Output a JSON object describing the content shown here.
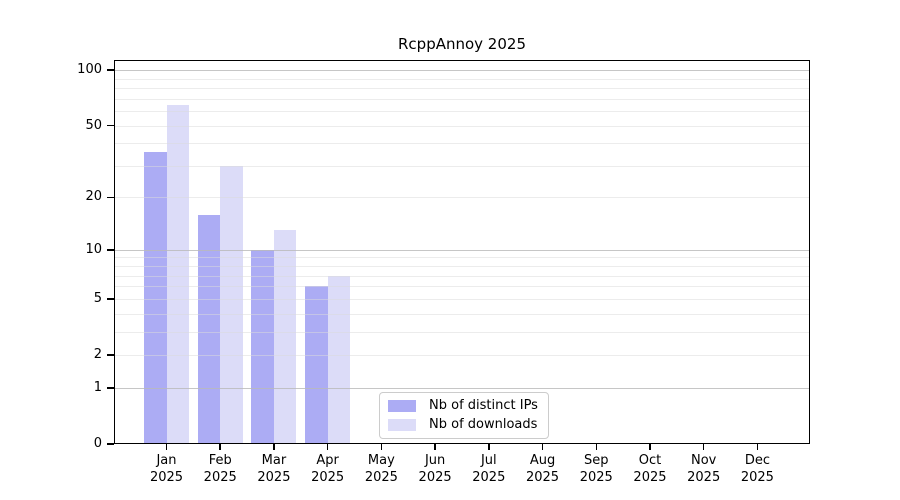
{
  "title": "RcppAnnoy 2025",
  "colors": {
    "distinct_ips": "#acacf4",
    "downloads": "#dcdcf8",
    "grid_decade": "#c6c6c6",
    "grid_minor": "#ebebeb",
    "axis": "#000000",
    "legend_border": "#cccccc"
  },
  "legend": {
    "items": [
      {
        "label": "Nb of distinct IPs",
        "color": "#acacf4"
      },
      {
        "label": "Nb of downloads",
        "color": "#dcdcf8"
      }
    ]
  },
  "axes": {
    "x": {
      "months": [
        "Jan",
        "Feb",
        "Mar",
        "Apr",
        "May",
        "Jun",
        "Jul",
        "Aug",
        "Sep",
        "Oct",
        "Nov",
        "Dec"
      ],
      "year": "2025"
    },
    "y": {
      "tick_labels": [
        0,
        1,
        2,
        5,
        10,
        20,
        50,
        100
      ]
    }
  },
  "chart_data": {
    "type": "bar",
    "title": "RcppAnnoy 2025",
    "y_scale": "log1p",
    "grid": "horizontal",
    "legend_position": "bottom-center-inside",
    "categories": [
      "Jan 2025",
      "Feb 2025",
      "Mar 2025",
      "Apr 2025",
      "May 2025",
      "Jun 2025",
      "Jul 2025",
      "Aug 2025",
      "Sep 2025",
      "Oct 2025",
      "Nov 2025",
      "Dec 2025"
    ],
    "series": [
      {
        "name": "Nb of distinct IPs",
        "color": "#acacf4",
        "values": [
          36,
          16,
          10,
          6,
          0,
          0,
          0,
          0,
          0,
          0,
          0,
          0
        ]
      },
      {
        "name": "Nb of downloads",
        "color": "#dcdcf8",
        "values": [
          65,
          30,
          13,
          7,
          0,
          0,
          0,
          0,
          0,
          0,
          0,
          0
        ]
      }
    ],
    "yticks": [
      0,
      1,
      2,
      5,
      10,
      20,
      50,
      100
    ],
    "gridlines_light": [
      2,
      3,
      4,
      5,
      6,
      7,
      8,
      9,
      20,
      30,
      40,
      50,
      60,
      70,
      80,
      90
    ],
    "gridlines_decade": [
      1,
      10,
      100
    ],
    "ylim": [
      0,
      113
    ]
  }
}
